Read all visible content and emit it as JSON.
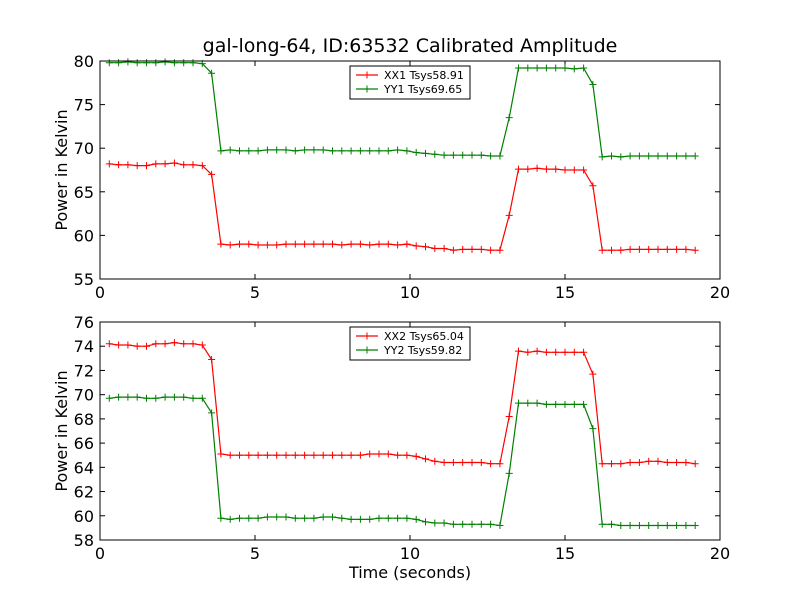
{
  "colors": {
    "red": "#ff0000",
    "green": "#008000"
  },
  "chart_data": [
    {
      "type": "line",
      "title": "gal-long-64, ID:63532 Calibrated Amplitude",
      "xlabel": "",
      "ylabel": "Power in Kelvin",
      "xlim": [
        0,
        20
      ],
      "ylim": [
        55,
        80
      ],
      "xticks": [
        0,
        5,
        10,
        15,
        20
      ],
      "yticks": [
        55,
        60,
        65,
        70,
        75,
        80
      ],
      "legend_position": "top-center",
      "marker": "+",
      "x": [
        0.3,
        0.6,
        0.9,
        1.2,
        1.5,
        1.8,
        2.1,
        2.4,
        2.7,
        3.0,
        3.3,
        3.6,
        3.9,
        4.2,
        4.5,
        4.8,
        5.1,
        5.4,
        5.7,
        6.0,
        6.3,
        6.6,
        6.9,
        7.2,
        7.5,
        7.8,
        8.1,
        8.4,
        8.7,
        9.0,
        9.3,
        9.6,
        9.9,
        10.2,
        10.5,
        10.8,
        11.1,
        11.4,
        11.7,
        12.0,
        12.3,
        12.6,
        12.9,
        13.2,
        13.5,
        13.8,
        14.1,
        14.4,
        14.7,
        15.0,
        15.3,
        15.6,
        15.9,
        16.2,
        16.5,
        16.8,
        17.1,
        17.4,
        17.7,
        18.0,
        18.3,
        18.6,
        18.9,
        19.2
      ],
      "series": [
        {
          "name": "XX1 Tsys58.91",
          "color": "#ff0000",
          "values": [
            68.2,
            68.1,
            68.1,
            68.0,
            68.0,
            68.2,
            68.2,
            68.3,
            68.1,
            68.1,
            68.0,
            67.0,
            59.0,
            58.9,
            59.0,
            59.0,
            58.9,
            58.9,
            58.9,
            59.0,
            59.0,
            59.0,
            59.0,
            59.0,
            59.0,
            58.9,
            59.0,
            59.0,
            58.9,
            59.0,
            59.0,
            58.9,
            59.0,
            58.8,
            58.7,
            58.5,
            58.5,
            58.3,
            58.4,
            58.4,
            58.4,
            58.3,
            58.3,
            62.3,
            67.6,
            67.6,
            67.7,
            67.6,
            67.6,
            67.5,
            67.5,
            67.5,
            65.7,
            58.3,
            58.3,
            58.3,
            58.4,
            58.4,
            58.4,
            58.4,
            58.4,
            58.4,
            58.4,
            58.3
          ]
        },
        {
          "name": "YY1 Tsys69.65",
          "color": "#008000",
          "values": [
            79.8,
            79.8,
            79.9,
            79.8,
            79.8,
            79.8,
            79.9,
            79.8,
            79.8,
            79.8,
            79.7,
            78.6,
            69.7,
            69.8,
            69.7,
            69.7,
            69.7,
            69.8,
            69.8,
            69.8,
            69.7,
            69.8,
            69.8,
            69.8,
            69.7,
            69.7,
            69.7,
            69.7,
            69.7,
            69.7,
            69.7,
            69.8,
            69.7,
            69.5,
            69.4,
            69.3,
            69.2,
            69.2,
            69.2,
            69.2,
            69.2,
            69.1,
            69.1,
            73.5,
            79.2,
            79.2,
            79.2,
            79.2,
            79.2,
            79.2,
            79.1,
            79.2,
            77.3,
            69.0,
            69.1,
            69.0,
            69.1,
            69.1,
            69.1,
            69.1,
            69.1,
            69.1,
            69.1,
            69.1
          ]
        }
      ]
    },
    {
      "type": "line",
      "title": "",
      "xlabel": "Time (seconds)",
      "ylabel": "Power in Kelvin",
      "xlim": [
        0,
        20
      ],
      "ylim": [
        58,
        76
      ],
      "xticks": [
        0,
        5,
        10,
        15,
        20
      ],
      "yticks": [
        58,
        60,
        62,
        64,
        66,
        68,
        70,
        72,
        74,
        76
      ],
      "legend_position": "top-center",
      "marker": "+",
      "x": [
        0.3,
        0.6,
        0.9,
        1.2,
        1.5,
        1.8,
        2.1,
        2.4,
        2.7,
        3.0,
        3.3,
        3.6,
        3.9,
        4.2,
        4.5,
        4.8,
        5.1,
        5.4,
        5.7,
        6.0,
        6.3,
        6.6,
        6.9,
        7.2,
        7.5,
        7.8,
        8.1,
        8.4,
        8.7,
        9.0,
        9.3,
        9.6,
        9.9,
        10.2,
        10.5,
        10.8,
        11.1,
        11.4,
        11.7,
        12.0,
        12.3,
        12.6,
        12.9,
        13.2,
        13.5,
        13.8,
        14.1,
        14.4,
        14.7,
        15.0,
        15.3,
        15.6,
        15.9,
        16.2,
        16.5,
        16.8,
        17.1,
        17.4,
        17.7,
        18.0,
        18.3,
        18.6,
        18.9,
        19.2
      ],
      "series": [
        {
          "name": "XX2 Tsys65.04",
          "color": "#ff0000",
          "values": [
            74.2,
            74.1,
            74.1,
            74.0,
            74.0,
            74.2,
            74.2,
            74.3,
            74.2,
            74.2,
            74.1,
            72.9,
            65.1,
            65.0,
            65.0,
            65.0,
            65.0,
            65.0,
            65.0,
            65.0,
            65.0,
            65.0,
            65.0,
            65.0,
            65.0,
            65.0,
            65.0,
            65.0,
            65.1,
            65.1,
            65.1,
            65.0,
            65.0,
            64.9,
            64.7,
            64.5,
            64.4,
            64.4,
            64.4,
            64.4,
            64.4,
            64.3,
            64.3,
            68.2,
            73.6,
            73.5,
            73.6,
            73.5,
            73.5,
            73.5,
            73.5,
            73.5,
            71.7,
            64.3,
            64.3,
            64.3,
            64.4,
            64.4,
            64.5,
            64.5,
            64.4,
            64.4,
            64.4,
            64.3
          ]
        },
        {
          "name": "YY2 Tsys59.82",
          "color": "#008000",
          "values": [
            69.7,
            69.8,
            69.8,
            69.8,
            69.7,
            69.7,
            69.8,
            69.8,
            69.8,
            69.7,
            69.7,
            68.5,
            59.8,
            59.7,
            59.8,
            59.8,
            59.8,
            59.9,
            59.9,
            59.9,
            59.8,
            59.8,
            59.8,
            59.9,
            59.9,
            59.8,
            59.7,
            59.7,
            59.7,
            59.8,
            59.8,
            59.8,
            59.8,
            59.7,
            59.5,
            59.4,
            59.4,
            59.3,
            59.3,
            59.3,
            59.3,
            59.3,
            59.2,
            63.5,
            69.3,
            69.3,
            69.3,
            69.2,
            69.2,
            69.2,
            69.2,
            69.2,
            67.2,
            59.3,
            59.3,
            59.2,
            59.2,
            59.2,
            59.2,
            59.2,
            59.2,
            59.2,
            59.2,
            59.2
          ]
        }
      ]
    }
  ]
}
